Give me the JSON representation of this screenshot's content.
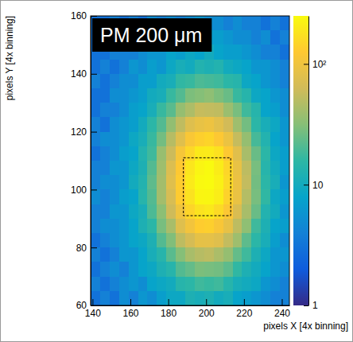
{
  "chart_data": {
    "type": "heatmap",
    "title": "PM 200 μm",
    "x_label": "pixels X [4x binning]",
    "y_label": "pixels Y [4x binning]",
    "xlim": [
      139,
      244
    ],
    "ylim": [
      60,
      160
    ],
    "xticks": [
      140,
      160,
      180,
      200,
      220,
      240
    ],
    "yticks": [
      60,
      80,
      100,
      120,
      140,
      160
    ],
    "grid": false,
    "x_bins": [
      139,
      144,
      149,
      154,
      159,
      164,
      169,
      174,
      179,
      184,
      189,
      194,
      199,
      204,
      209,
      214,
      219,
      224,
      229,
      234,
      239,
      244
    ],
    "y_bins": [
      60,
      65,
      70,
      75,
      80,
      85,
      90,
      95,
      100,
      105,
      110,
      115,
      120,
      125,
      130,
      135,
      140,
      145,
      150,
      155,
      160
    ],
    "z": [
      [
        3,
        4,
        3,
        5,
        4,
        6,
        5,
        7,
        9,
        9,
        12,
        11,
        12,
        10,
        11,
        8,
        7,
        6,
        5,
        4,
        4
      ],
      [
        4,
        3,
        4,
        5,
        6,
        5,
        8,
        9,
        10,
        14,
        15,
        18,
        17,
        18,
        14,
        11,
        10,
        9,
        6,
        5,
        4
      ],
      [
        3,
        4,
        5,
        4,
        6,
        8,
        9,
        12,
        14,
        21,
        24,
        29,
        28,
        27,
        23,
        16,
        12,
        10,
        8,
        6,
        5
      ],
      [
        4,
        3,
        4,
        6,
        6,
        8,
        11,
        14,
        22,
        31,
        43,
        49,
        52,
        44,
        36,
        24,
        18,
        12,
        9,
        6,
        6
      ],
      [
        3,
        4,
        5,
        6,
        8,
        9,
        12,
        21,
        30,
        52,
        67,
        86,
        85,
        78,
        55,
        39,
        23,
        15,
        11,
        7,
        5
      ],
      [
        4,
        5,
        5,
        6,
        8,
        12,
        15,
        28,
        43,
        77,
        104,
        132,
        137,
        114,
        88,
        52,
        34,
        18,
        12,
        8,
        7
      ],
      [
        4,
        4,
        6,
        6,
        9,
        11,
        20,
        33,
        61,
        100,
        150,
        180,
        193,
        161,
        121,
        71,
        43,
        25,
        13,
        10,
        6
      ],
      [
        5,
        4,
        5,
        7,
        8,
        14,
        21,
        41,
        69,
        130,
        178,
        231,
        234,
        207,
        144,
        91,
        48,
        28,
        16,
        9,
        7
      ],
      [
        4,
        5,
        5,
        6,
        10,
        13,
        23,
        41,
        78,
        133,
        199,
        242,
        258,
        217,
        161,
        93,
        55,
        27,
        15,
        11,
        6
      ],
      [
        4,
        4,
        6,
        6,
        9,
        12,
        21,
        39,
        73,
        126,
        189,
        229,
        245,
        205,
        152,
        89,
        52,
        28,
        14,
        10,
        7
      ],
      [
        3,
        4,
        5,
        7,
        8,
        13,
        18,
        37,
        60,
        111,
        153,
        197,
        199,
        177,
        124,
        79,
        43,
        25,
        15,
        9,
        7
      ],
      [
        4,
        5,
        5,
        6,
        9,
        11,
        17,
        27,
        49,
        78,
        116,
        137,
        148,
        123,
        94,
        56,
        36,
        19,
        13,
        8,
        6
      ],
      [
        4,
        3,
        5,
        6,
        7,
        10,
        15,
        21,
        35,
        53,
        77,
        89,
        96,
        81,
        64,
        39,
        27,
        15,
        11,
        9,
        6
      ],
      [
        3,
        4,
        4,
        5,
        7,
        8,
        11,
        17,
        22,
        36,
        45,
        57,
        55,
        53,
        38,
        28,
        18,
        14,
        8,
        7,
        5
      ],
      [
        3,
        3,
        5,
        5,
        6,
        7,
        10,
        11,
        17,
        21,
        29,
        31,
        34,
        29,
        25,
        17,
        14,
        9,
        8,
        6,
        5
      ],
      [
        4,
        3,
        4,
        5,
        5,
        7,
        7,
        10,
        11,
        16,
        17,
        20,
        19,
        18,
        15,
        14,
        9,
        8,
        6,
        5,
        4
      ],
      [
        3,
        4,
        3,
        4,
        6,
        5,
        7,
        6,
        9,
        11,
        10,
        13,
        12,
        13,
        10,
        9,
        8,
        6,
        6,
        5,
        4
      ],
      [
        3,
        3,
        4,
        4,
        4,
        5,
        6,
        6,
        8,
        7,
        9,
        8,
        10,
        8,
        7,
        7,
        6,
        5,
        4,
        4,
        3
      ],
      [
        3,
        4,
        3,
        3,
        4,
        5,
        4,
        6,
        5,
        6,
        7,
        6,
        7,
        7,
        6,
        5,
        5,
        4,
        5,
        3,
        4
      ],
      [
        3,
        3,
        4,
        3,
        4,
        3,
        5,
        4,
        5,
        4,
        5,
        6,
        5,
        5,
        4,
        5,
        4,
        4,
        3,
        4,
        3
      ]
    ],
    "colorbar": {
      "range": [
        1,
        250
      ],
      "ticks": [
        1,
        10,
        {
          "value": 100,
          "label": "10²"
        }
      ],
      "log": true
    },
    "roi": {
      "x": [
        188,
        213
      ],
      "y": [
        91,
        111
      ]
    }
  }
}
